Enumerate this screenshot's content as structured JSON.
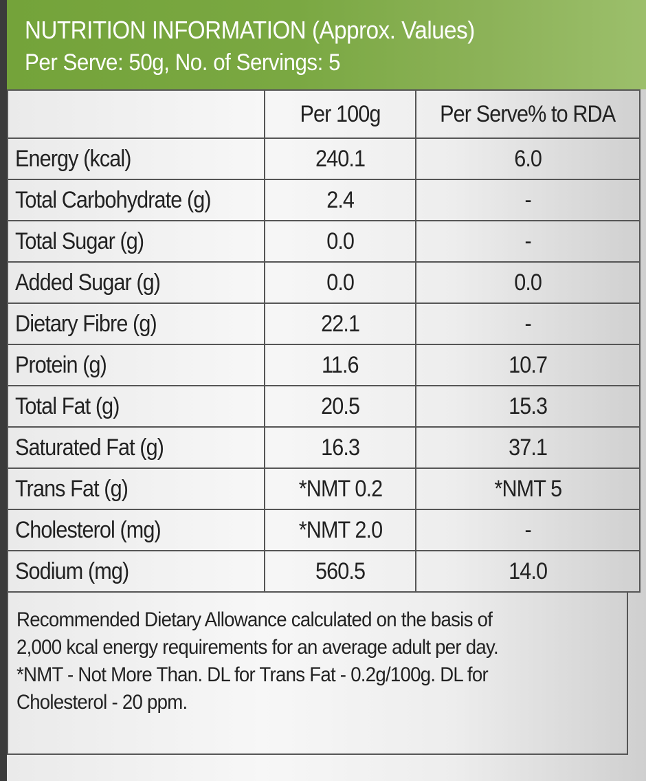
{
  "header": {
    "title": "NUTRITION INFORMATION (Approx. Values)",
    "subtitle": "Per Serve: 50g, No. of Servings: 5"
  },
  "table": {
    "columns": [
      "",
      "Per 100g",
      "Per Serve% to RDA"
    ],
    "rows": [
      {
        "name": "Energy (kcal)",
        "per_100g": "240.1",
        "per_serve_rda": "6.0"
      },
      {
        "name": "Total Carbohydrate (g)",
        "per_100g": "2.4",
        "per_serve_rda": "-"
      },
      {
        "name": "Total Sugar (g)",
        "per_100g": "0.0",
        "per_serve_rda": "-"
      },
      {
        "name": "Added Sugar (g)",
        "per_100g": "0.0",
        "per_serve_rda": "0.0"
      },
      {
        "name": "Dietary Fibre (g)",
        "per_100g": "22.1",
        "per_serve_rda": "-"
      },
      {
        "name": "Protein (g)",
        "per_100g": "11.6",
        "per_serve_rda": "10.7"
      },
      {
        "name": "Total Fat (g)",
        "per_100g": "20.5",
        "per_serve_rda": "15.3"
      },
      {
        "name": "Saturated Fat (g)",
        "per_100g": "16.3",
        "per_serve_rda": "37.1"
      },
      {
        "name": "Trans Fat (g)",
        "per_100g": "*NMT 0.2",
        "per_serve_rda": "*NMT 5"
      },
      {
        "name": "Cholesterol (mg)",
        "per_100g": "*NMT 2.0",
        "per_serve_rda": "-"
      },
      {
        "name": "Sodium (mg)",
        "per_100g": "560.5",
        "per_serve_rda": "14.0"
      }
    ]
  },
  "footnote": {
    "lines": [
      "Recommended Dietary Allowance calculated on the basis of",
      "2,000 kcal energy requirements for an average adult per day.",
      "*NMT - Not More Than. DL for Trans Fat - 0.2g/100g. DL for",
      "Cholesterol - 20 ppm."
    ]
  },
  "colors": {
    "header_green": "#7aa842",
    "border": "#555555",
    "text": "#222222"
  }
}
